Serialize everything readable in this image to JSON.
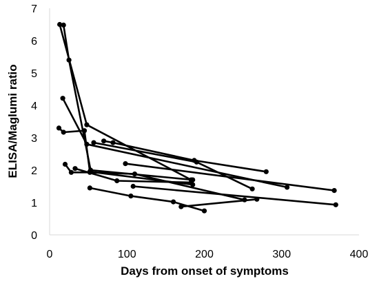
{
  "chart_data": {
    "type": "line",
    "xlabel": "Days from onset of symptoms",
    "ylabel": "ELISA/Maglumi ratio",
    "xlim": [
      0,
      400
    ],
    "ylim": [
      0,
      7
    ],
    "xticks": [
      "0",
      "100",
      "200",
      "300",
      "400"
    ],
    "yticks": [
      "0",
      "1",
      "2",
      "3",
      "4",
      "5",
      "6",
      "7"
    ],
    "grid": false,
    "legend": "none",
    "series": [
      {
        "x": [
          13,
          48,
          183
        ],
        "y": [
          6.5,
          3.4,
          1.7
        ]
      },
      {
        "x": [
          18,
          25,
          53,
          185
        ],
        "y": [
          6.48,
          5.4,
          2.0,
          1.7
        ]
      },
      {
        "x": [
          17,
          48,
          307
        ],
        "y": [
          4.22,
          2.8,
          1.47
        ]
      },
      {
        "x": [
          12,
          18,
          45,
          52,
          185
        ],
        "y": [
          3.3,
          3.17,
          3.22,
          1.95,
          1.55
        ]
      },
      {
        "x": [
          57,
          190,
          262
        ],
        "y": [
          2.85,
          2.25,
          1.42
        ]
      },
      {
        "x": [
          70,
          82,
          187,
          280
        ],
        "y": [
          2.9,
          2.85,
          2.3,
          1.95
        ]
      },
      {
        "x": [
          98,
          368
        ],
        "y": [
          2.2,
          1.37
        ]
      },
      {
        "x": [
          20,
          28,
          52,
          110,
          252
        ],
        "y": [
          2.18,
          1.93,
          1.93,
          1.88,
          1.08
        ]
      },
      {
        "x": [
          33,
          87,
          183
        ],
        "y": [
          2.05,
          1.67,
          1.62
        ]
      },
      {
        "x": [
          108,
          370
        ],
        "y": [
          1.5,
          0.93
        ]
      },
      {
        "x": [
          52,
          105,
          160,
          200
        ],
        "y": [
          1.45,
          1.2,
          1.02,
          0.74
        ]
      },
      {
        "x": [
          170,
          268
        ],
        "y": [
          0.87,
          1.1
        ]
      }
    ]
  }
}
